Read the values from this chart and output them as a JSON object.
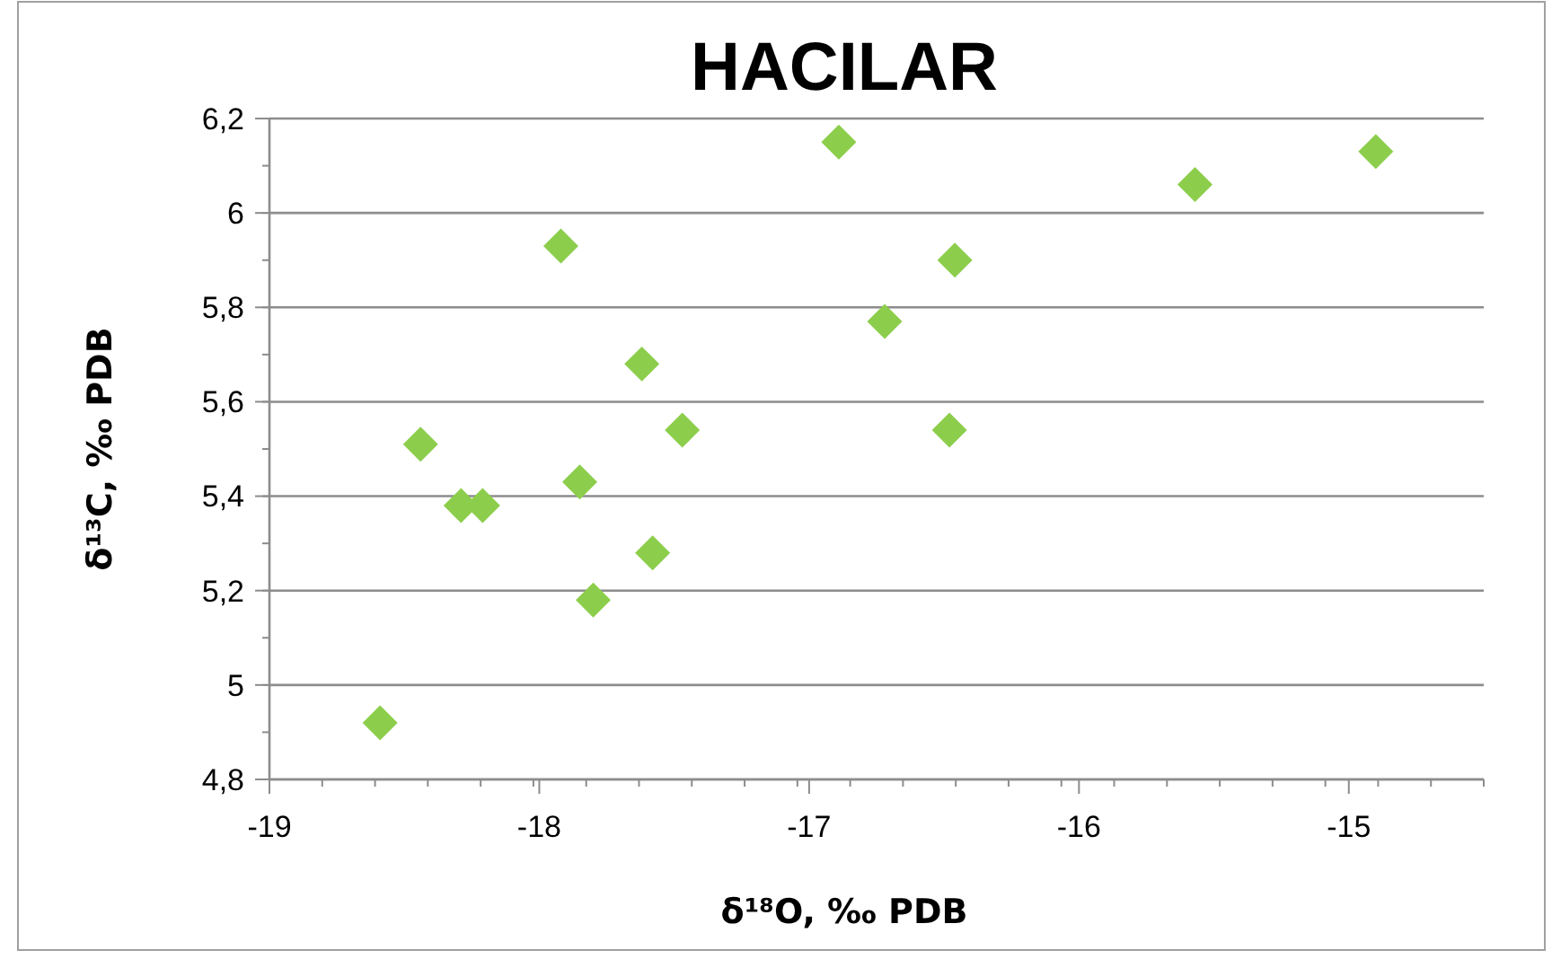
{
  "chart_data": {
    "type": "scatter",
    "title": "HACILAR",
    "xlabel": "δ¹⁸O, ‰ PDB",
    "ylabel": "δ¹³C, ‰ PDB",
    "x": [
      -18.59,
      -18.44,
      -18.29,
      -18.21,
      -17.92,
      -17.85,
      -17.8,
      -17.62,
      -17.58,
      -17.47,
      -16.89,
      -16.72,
      -16.46,
      -16.48,
      -15.57,
      -14.9
    ],
    "series": [
      {
        "color": "#8cce4c",
        "values": [
          4.92,
          5.51,
          5.38,
          5.38,
          5.93,
          5.43,
          5.18,
          5.68,
          5.28,
          5.54,
          6.15,
          5.77,
          5.9,
          5.54,
          6.06,
          6.13
        ]
      }
    ],
    "xlim": [
      -19,
      -14.5
    ],
    "xticks": [
      -19,
      -18,
      -17,
      -16,
      -15
    ],
    "ylim": [
      4.8,
      6.2
    ],
    "yticks": [
      {
        "value": 4.8,
        "label": "4,8"
      },
      {
        "value": 5,
        "label": "5"
      },
      {
        "value": 5.2,
        "label": "5,2"
      },
      {
        "value": 5.4,
        "label": "5,4"
      },
      {
        "value": 5.6,
        "label": "5,6"
      },
      {
        "value": 5.8,
        "label": "5,8"
      },
      {
        "value": 6,
        "label": "6"
      },
      {
        "value": 6.2,
        "label": "6,2"
      }
    ],
    "grid": "y",
    "marker": "diamond"
  }
}
